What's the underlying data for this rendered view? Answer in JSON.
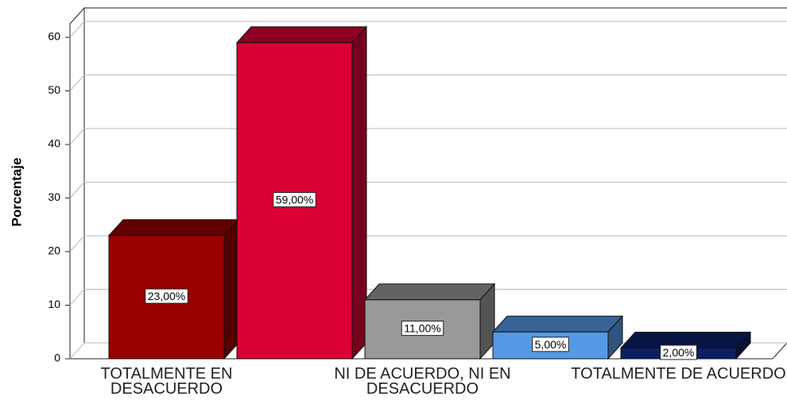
{
  "chart_data": {
    "type": "bar3d",
    "y_label": "Porcentaje",
    "categories": [
      "TOTALMENTE EN DESACUERDO",
      null,
      "NI DE ACUERDO, NI EN DESACUERDO",
      null,
      "TOTALMENTE DE ACUERDO"
    ],
    "values": [
      23,
      59,
      11,
      5,
      2
    ],
    "value_labels": [
      "23,00%",
      "59,00%",
      "11,00%",
      "5,00%",
      "2,00%"
    ],
    "colors": [
      "#990000",
      "#d90032",
      "#999999",
      "#5599e6",
      "#0c1f66"
    ],
    "ylim": [
      0,
      60
    ],
    "yticks": [
      0,
      10,
      20,
      30,
      40,
      50,
      60
    ],
    "grid": true
  }
}
